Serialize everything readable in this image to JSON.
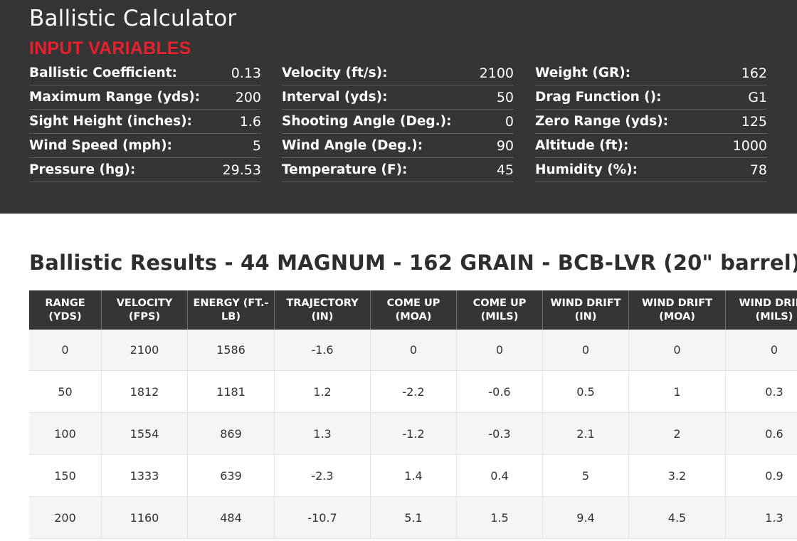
{
  "calculator": {
    "title": "Ballistic Calculator",
    "section_heading": "INPUT VARIABLES",
    "accent_color": "#e8202e",
    "columns": [
      [
        {
          "label": "Ballistic Coefficient:",
          "value": "0.13"
        },
        {
          "label": "Maximum Range (yds):",
          "value": "200"
        },
        {
          "label": "Sight Height (inches):",
          "value": "1.6"
        },
        {
          "label": "Wind Speed (mph):",
          "value": "5"
        },
        {
          "label": "Pressure (hg):",
          "value": "29.53"
        }
      ],
      [
        {
          "label": "Velocity (ft/s):",
          "value": "2100"
        },
        {
          "label": "Interval (yds):",
          "value": "50"
        },
        {
          "label": "Shooting Angle (Deg.):",
          "value": "0"
        },
        {
          "label": "Wind Angle (Deg.):",
          "value": "90"
        },
        {
          "label": "Temperature (F):",
          "value": "45"
        }
      ],
      [
        {
          "label": "Weight (GR):",
          "value": "162"
        },
        {
          "label": "Drag Function ():",
          "value": "G1"
        },
        {
          "label": "Zero Range (yds):",
          "value": "125"
        },
        {
          "label": "Altitude (ft):",
          "value": "1000"
        },
        {
          "label": "Humidity (%):",
          "value": "78"
        }
      ]
    ]
  },
  "results": {
    "title": "Ballistic Results - 44 MAGNUM - 162 GRAIN - BCB-LVR (20\" barrel)",
    "headers": [
      [
        "RANGE",
        "(YDS)"
      ],
      [
        "VELOCITY",
        "(FPS)"
      ],
      [
        "ENERGY (FT.-",
        "LB)"
      ],
      [
        "TRAJECTORY",
        "(IN)"
      ],
      [
        "COME UP",
        "(MOA)"
      ],
      [
        "COME UP",
        "(MILS)"
      ],
      [
        "WIND DRIFT",
        "(IN)"
      ],
      [
        "WIND DRIFT",
        "(MOA)"
      ],
      [
        "WIND DRIFT",
        "(MILS)"
      ]
    ],
    "rows": [
      [
        "0",
        "2100",
        "1586",
        "-1.6",
        "0",
        "0",
        "0",
        "0",
        "0"
      ],
      [
        "50",
        "1812",
        "1181",
        "1.2",
        "-2.2",
        "-0.6",
        "0.5",
        "1",
        "0.3"
      ],
      [
        "100",
        "1554",
        "869",
        "1.3",
        "-1.2",
        "-0.3",
        "2.1",
        "2",
        "0.6"
      ],
      [
        "150",
        "1333",
        "639",
        "-2.3",
        "1.4",
        "0.4",
        "5",
        "3.2",
        "0.9"
      ],
      [
        "200",
        "1160",
        "484",
        "-10.7",
        "5.1",
        "1.5",
        "9.4",
        "4.5",
        "1.3"
      ]
    ]
  }
}
